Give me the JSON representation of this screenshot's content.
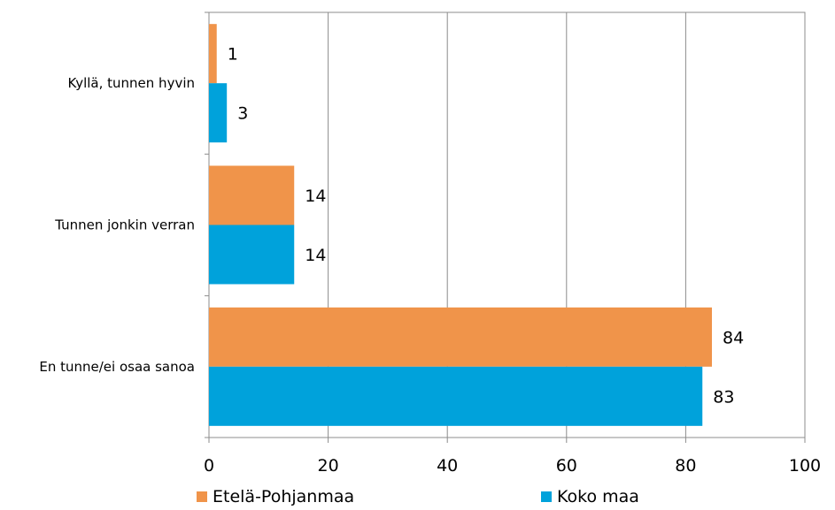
{
  "chart_data": {
    "type": "bar",
    "orientation": "horizontal",
    "categories": [
      "Kyllä, tunnen hyvin",
      "Tunnen jonkin verran",
      "En tunne/ei osaa sanoa"
    ],
    "series": [
      {
        "name": "Etelä-Pohjanmaa",
        "values": [
          1.3,
          14.3,
          84.4
        ],
        "labels": [
          "1",
          "14",
          "84"
        ],
        "color": "#F0944A"
      },
      {
        "name": "Koko maa",
        "values": [
          3.0,
          14.3,
          82.8
        ],
        "labels": [
          "3",
          "14",
          "83"
        ],
        "color": "#00A2DB"
      }
    ],
    "xlim": [
      0,
      100
    ],
    "xticks": [
      "0",
      "20",
      "40",
      "60",
      "80",
      "100"
    ],
    "grid": true,
    "legend_position": "bottom"
  }
}
